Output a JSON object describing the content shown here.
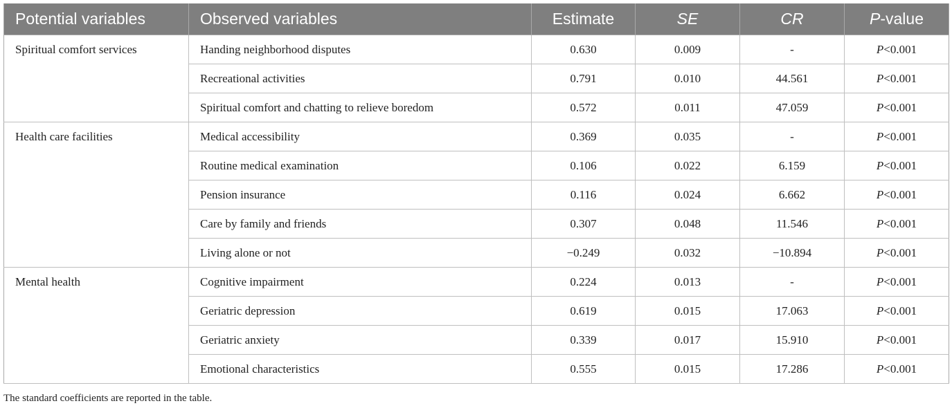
{
  "table": {
    "headers": {
      "potential": "Potential variables",
      "observed": "Observed variables",
      "estimate": "Estimate",
      "se": "SE",
      "cr": "CR",
      "p_italic": "P",
      "p_rest": "-value"
    },
    "groups": [
      {
        "potential": "Spiritual comfort services",
        "rows": [
          {
            "observed": "Handing neighborhood disputes",
            "estimate": "0.630",
            "se": "0.009",
            "cr": "-",
            "p_italic": "P",
            "p_rest": "<0.001"
          },
          {
            "observed": "Recreational activities",
            "estimate": "0.791",
            "se": "0.010",
            "cr": "44.561",
            "p_italic": "P",
            "p_rest": "<0.001"
          },
          {
            "observed": "Spiritual comfort and chatting to relieve boredom",
            "estimate": "0.572",
            "se": "0.011",
            "cr": "47.059",
            "p_italic": "P",
            "p_rest": "<0.001"
          }
        ]
      },
      {
        "potential": "Health care facilities",
        "rows": [
          {
            "observed": "Medical accessibility",
            "estimate": "0.369",
            "se": "0.035",
            "cr": "-",
            "p_italic": "P",
            "p_rest": "<0.001"
          },
          {
            "observed": "Routine medical examination",
            "estimate": "0.106",
            "se": "0.022",
            "cr": "6.159",
            "p_italic": "P",
            "p_rest": "<0.001"
          },
          {
            "observed": "Pension insurance",
            "estimate": "0.116",
            "se": "0.024",
            "cr": "6.662",
            "p_italic": "P",
            "p_rest": "<0.001"
          },
          {
            "observed": "Care by family and friends",
            "estimate": "0.307",
            "se": "0.048",
            "cr": "11.546",
            "p_italic": "P",
            "p_rest": "<0.001"
          },
          {
            "observed": "Living alone or not",
            "estimate": "−0.249",
            "se": "0.032",
            "cr": "−10.894",
            "p_italic": "P",
            "p_rest": "<0.001"
          }
        ]
      },
      {
        "potential": "Mental health",
        "rows": [
          {
            "observed": "Cognitive impairment",
            "estimate": "0.224",
            "se": "0.013",
            "cr": "-",
            "p_italic": "P",
            "p_rest": "<0.001"
          },
          {
            "observed": "Geriatric depression",
            "estimate": "0.619",
            "se": "0.015",
            "cr": "17.063",
            "p_italic": "P",
            "p_rest": "<0.001"
          },
          {
            "observed": "Geriatric anxiety",
            "estimate": "0.339",
            "se": "0.017",
            "cr": "15.910",
            "p_italic": "P",
            "p_rest": "<0.001"
          },
          {
            "observed": "Emotional characteristics",
            "estimate": "0.555",
            "se": "0.015",
            "cr": "17.286",
            "p_italic": "P",
            "p_rest": "<0.001"
          }
        ]
      }
    ]
  },
  "footnote": "The standard coefficients are reported in the table.",
  "colors": {
    "header_bg": "#7f7f7f",
    "header_text": "#ffffff",
    "grid": "#bfbfbf",
    "text": "#222222"
  }
}
